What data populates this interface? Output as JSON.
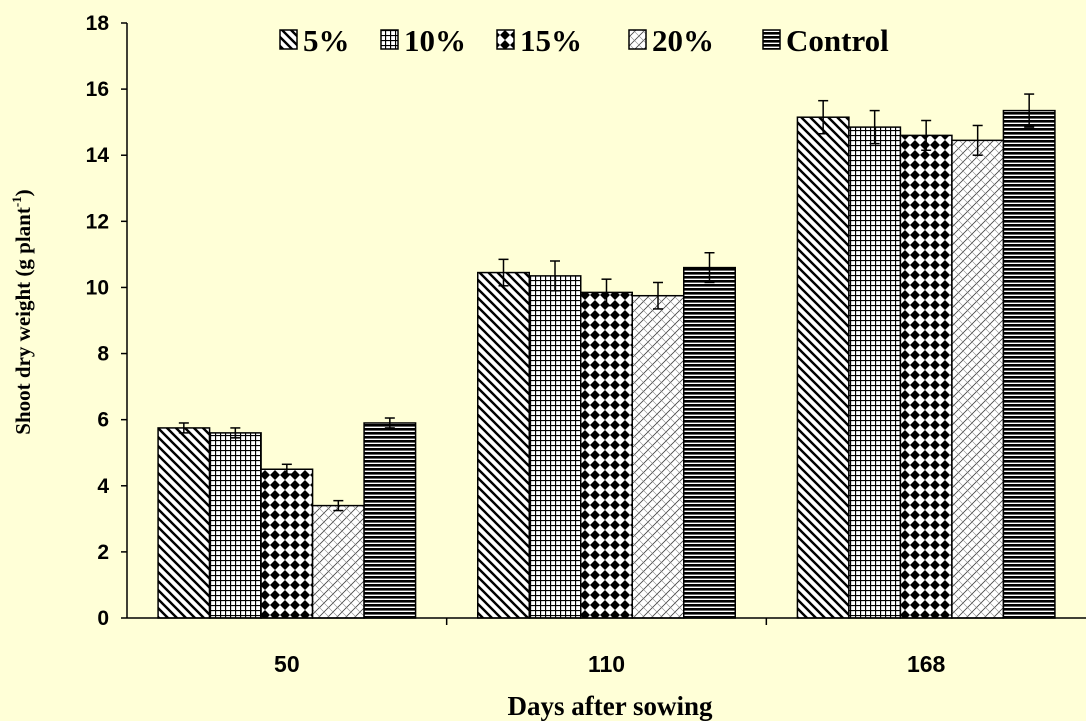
{
  "chart_data": {
    "type": "bar",
    "title": "",
    "xlabel": "Days after sowing",
    "ylabel": "Shoot dry weight (g plant",
    "ylabel_superscript": "-1",
    "ylabel_close": ")",
    "categories": [
      "50",
      "110",
      "168"
    ],
    "ylim": [
      0,
      18
    ],
    "yticks": [
      "0",
      "2",
      "4",
      "6",
      "8",
      "10",
      "12",
      "14",
      "16",
      "18"
    ],
    "grid": false,
    "legend_position": "top",
    "series": [
      {
        "name": "5%",
        "pattern": "diag-back",
        "values": [
          5.75,
          10.45,
          15.15
        ],
        "errors": [
          0.15,
          0.4,
          0.5
        ]
      },
      {
        "name": "10%",
        "pattern": "grid",
        "values": [
          5.6,
          10.35,
          14.85
        ],
        "errors": [
          0.15,
          0.45,
          0.5
        ]
      },
      {
        "name": "15%",
        "pattern": "diamond",
        "values": [
          4.5,
          9.85,
          14.6
        ],
        "errors": [
          0.15,
          0.4,
          0.45
        ]
      },
      {
        "name": "20%",
        "pattern": "light-cross",
        "values": [
          3.4,
          9.75,
          14.45
        ],
        "errors": [
          0.15,
          0.4,
          0.45
        ]
      },
      {
        "name": "Control",
        "pattern": "horizontal",
        "values": [
          5.9,
          10.6,
          15.35
        ],
        "errors": [
          0.15,
          0.45,
          0.5
        ]
      }
    ],
    "colors": {
      "background": "#FFFFD7",
      "bar_fill": "#FFFFFF",
      "ink": "#000000"
    }
  }
}
